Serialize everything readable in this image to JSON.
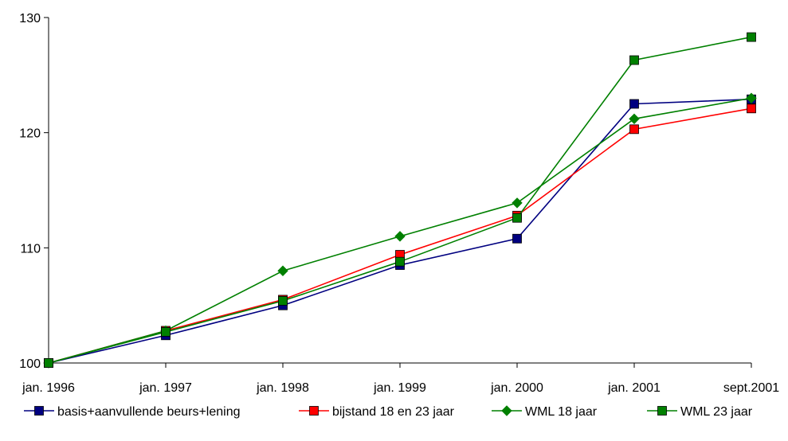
{
  "chart_data": {
    "type": "line",
    "title": "",
    "xlabel": "",
    "ylabel": "",
    "categories": [
      "jan. 1996",
      "jan. 1997",
      "jan. 1998",
      "jan. 1999",
      "jan. 2000",
      "jan. 2001",
      "sept.2001"
    ],
    "ylim": [
      100,
      130
    ],
    "yticks": [
      100,
      110,
      120,
      130
    ],
    "grid": false,
    "legend_position": "bottom",
    "series": [
      {
        "name": "basis+aanvullende beurs+lening",
        "color": "#000080",
        "marker": "square",
        "values": [
          100,
          102.4,
          105.0,
          108.5,
          110.8,
          122.5,
          122.9
        ]
      },
      {
        "name": "bijstand 18 en 23 jaar",
        "color": "#ff0000",
        "marker": "square",
        "values": [
          100,
          102.8,
          105.5,
          109.4,
          112.8,
          120.3,
          122.1
        ]
      },
      {
        "name": "WML 18 jaar",
        "color": "#008000",
        "marker": "diamond",
        "values": [
          100,
          102.8,
          108.0,
          111.0,
          113.9,
          121.2,
          123.0
        ]
      },
      {
        "name": "WML 23 jaar",
        "color": "#008000",
        "marker": "square",
        "values": [
          100,
          102.7,
          105.4,
          108.8,
          112.6,
          126.3,
          128.3
        ]
      }
    ]
  }
}
